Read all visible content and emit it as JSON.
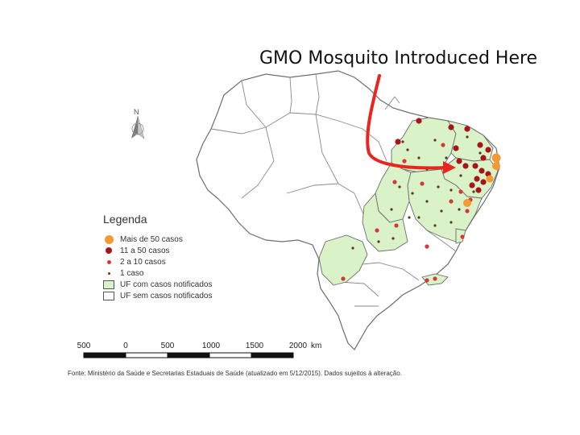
{
  "headline": "GMO Mosquito Introduced Here",
  "north_label": "N",
  "legend": {
    "title": "Legenda",
    "items": [
      {
        "label": "Mais de 50 casos",
        "symbol": "dot-large",
        "color": "#f39a32"
      },
      {
        "label": "11 a 50 casos",
        "symbol": "dot-medium",
        "color": "#a8141b"
      },
      {
        "label": "2 a 10 casos",
        "symbol": "dot-small",
        "color": "#d23a3a"
      },
      {
        "label": "1 caso",
        "symbol": "dot-tiny",
        "color": "#5a3a1e"
      },
      {
        "label": "UF com casos notificados",
        "symbol": "box",
        "color": "#d9f2c7"
      },
      {
        "label": "UF sem casos notificados",
        "symbol": "box",
        "color": "#ffffff"
      }
    ]
  },
  "scale": {
    "labels": [
      "500",
      "0",
      "500",
      "1000",
      "1500",
      "2000"
    ],
    "unit": "km"
  },
  "source": "Fonte: Ministério da Saúde e Secretarias Estaduais de Saúde (atualizado em 5/12/2015). Dados sujeitos à alteração.",
  "colors": {
    "affected_state": "#d9f2c7",
    "unaffected_state": "#ffffff",
    "border": "#6e6e6e",
    "arrow": "#e8261e"
  }
}
